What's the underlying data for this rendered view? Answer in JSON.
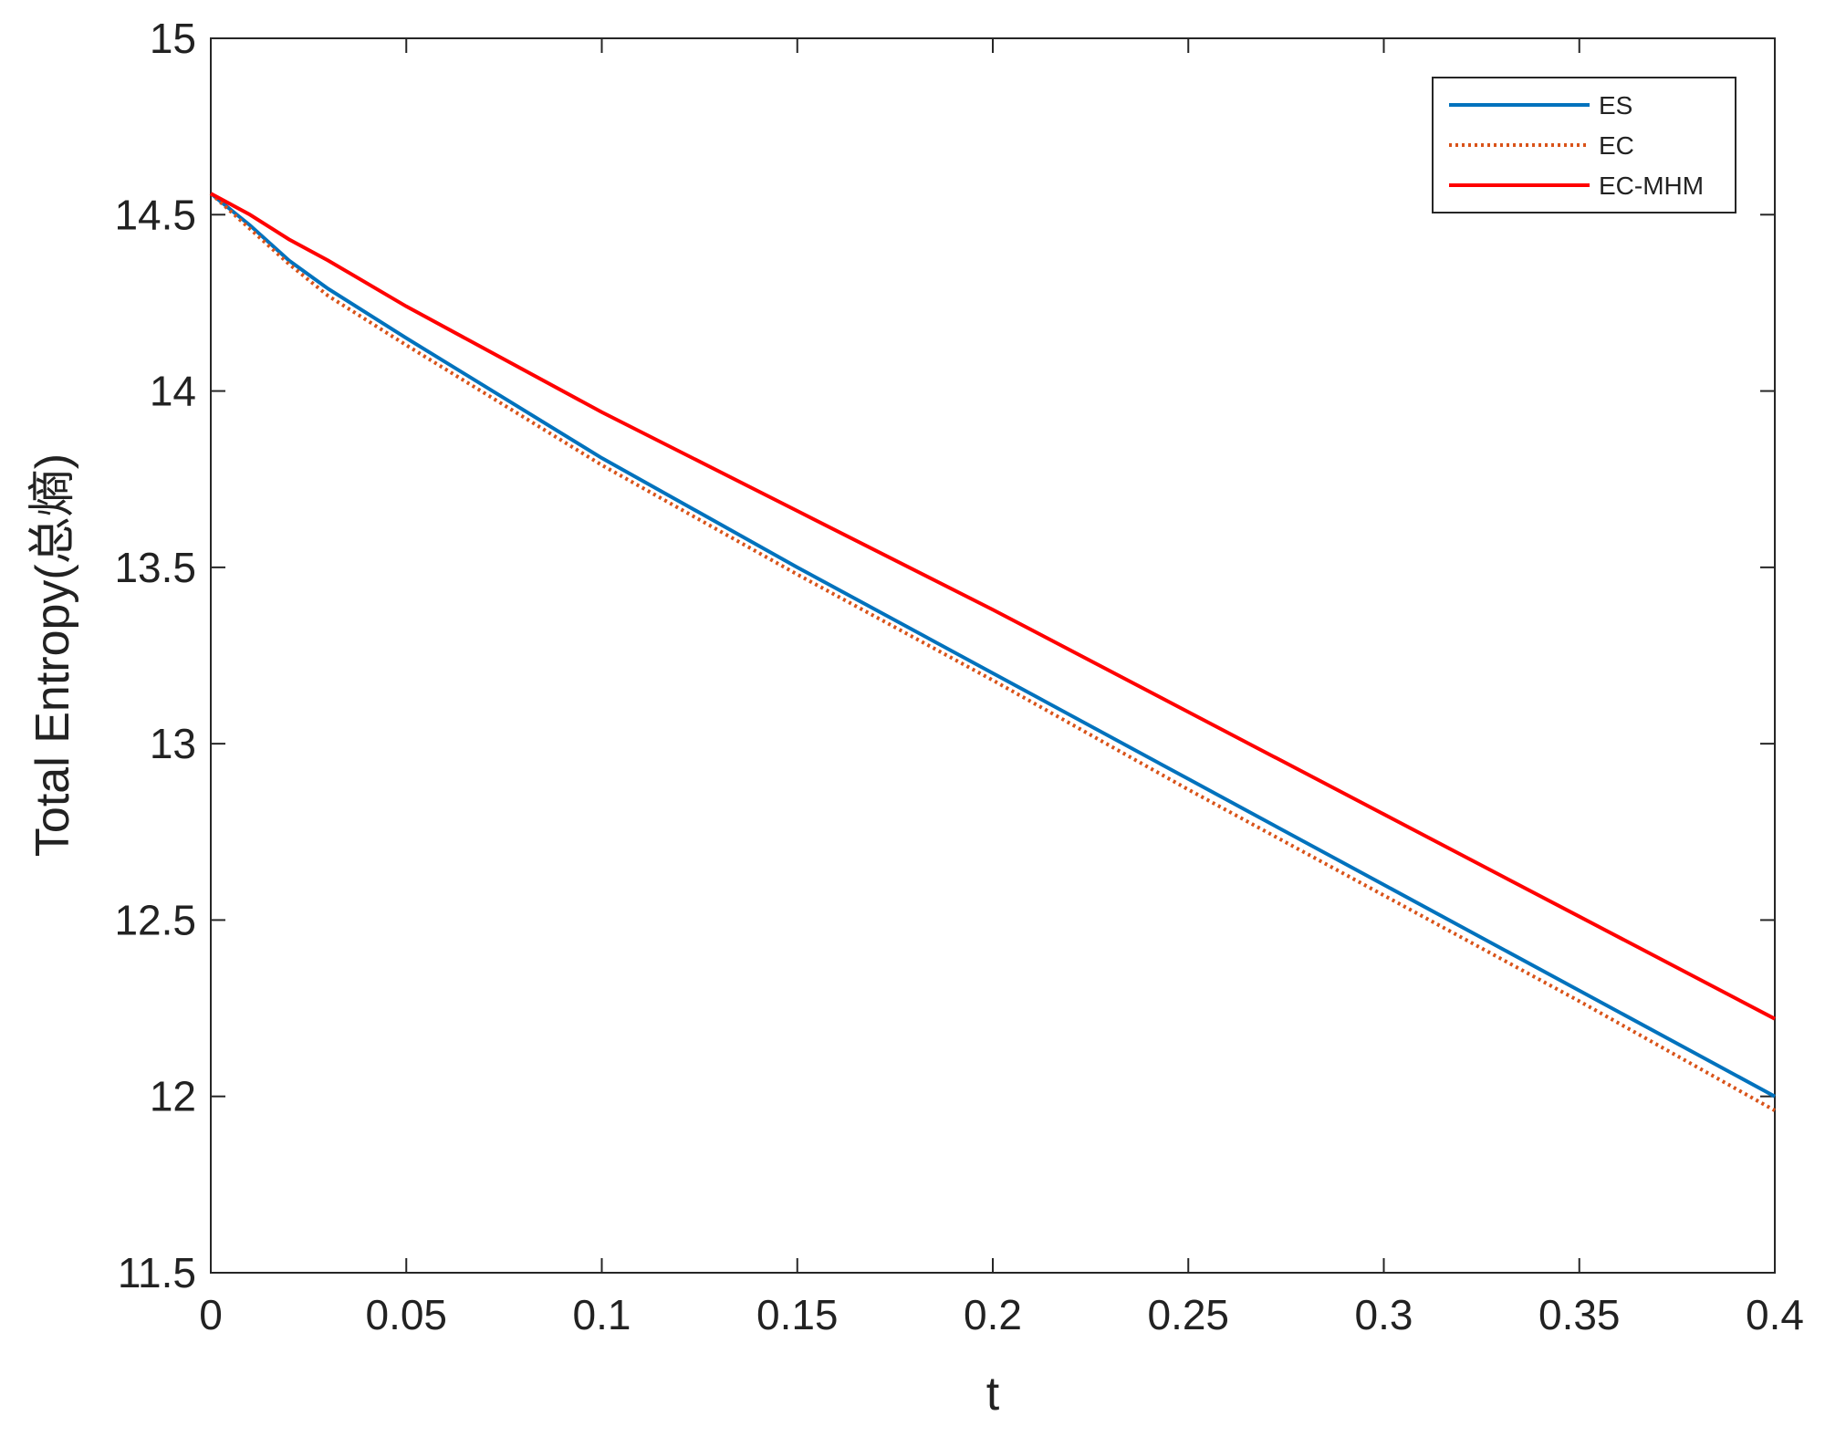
{
  "chart_data": {
    "type": "line",
    "xlabel": "t",
    "ylabel": "Total Entropy(总熵)",
    "x": [
      0,
      0.01,
      0.02,
      0.03,
      0.05,
      0.1,
      0.15,
      0.2,
      0.25,
      0.3,
      0.35,
      0.4
    ],
    "series": [
      {
        "name": "ES",
        "color": "#0072bd",
        "dash": false,
        "values": [
          14.56,
          14.47,
          14.37,
          14.29,
          14.15,
          13.81,
          13.5,
          13.2,
          12.9,
          12.6,
          12.3,
          12.0
        ]
      },
      {
        "name": "EC",
        "color": "#d95319",
        "dash": true,
        "values": [
          14.56,
          14.46,
          14.36,
          14.27,
          14.13,
          13.79,
          13.48,
          13.18,
          12.87,
          12.57,
          12.27,
          11.96
        ]
      },
      {
        "name": "EC-MHM",
        "color": "#ff0000",
        "dash": false,
        "values": [
          14.56,
          14.5,
          14.43,
          14.37,
          14.24,
          13.94,
          13.66,
          13.38,
          13.09,
          12.8,
          12.51,
          12.22
        ]
      }
    ],
    "xlim": [
      0,
      0.4
    ],
    "xticks": [
      0,
      0.05,
      0.1,
      0.15,
      0.2,
      0.25,
      0.3,
      0.35,
      0.4
    ],
    "ylim": [
      11.5,
      15
    ],
    "yticks": [
      11.5,
      12,
      12.5,
      13,
      13.5,
      14,
      14.5,
      15
    ],
    "legend": "upper-right"
  }
}
